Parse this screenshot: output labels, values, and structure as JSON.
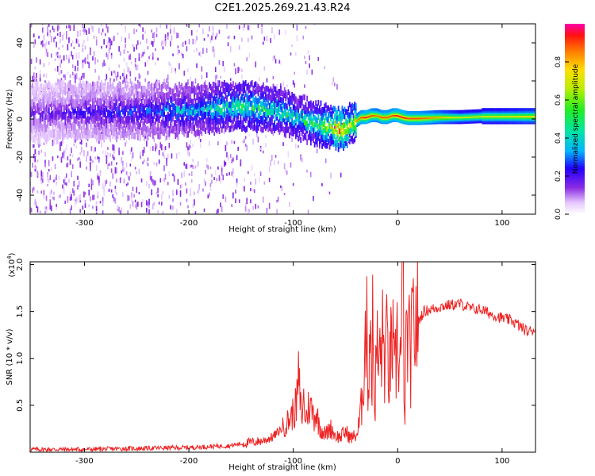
{
  "chart_data": [
    {
      "type": "heatmap",
      "title": "C2E1.2025.269.21.43.R24",
      "xlabel": "Height of straight line (km)",
      "ylabel": "Frequency (Hz)",
      "xlim": [
        -352,
        132
      ],
      "ylim": [
        -50,
        50
      ],
      "xticks": [
        -300,
        -200,
        -100,
        0,
        100
      ],
      "yticks": [
        -40,
        -20,
        0,
        20,
        40
      ],
      "colorbar": {
        "label": "Normalized spectral amplitude",
        "range": [
          0,
          1
        ],
        "ticks": [
          0.0,
          0.2,
          0.4,
          0.6,
          0.8
        ],
        "tick_labels": [
          "0.0",
          "0.2",
          "0.4",
          "0.6",
          "0.8"
        ]
      },
      "ridge": {
        "height_km": [
          -350,
          -300,
          -250,
          -200,
          -170,
          -150,
          -130,
          -110,
          -95,
          -80,
          -65,
          -58,
          -50,
          -45,
          -40,
          -35,
          -30,
          -25,
          -20,
          -15,
          -10,
          -5,
          0,
          5,
          10,
          20,
          40,
          60,
          80,
          100,
          132
        ],
        "frequency_hz": [
          3,
          4,
          4,
          5,
          6,
          7,
          6,
          4,
          1,
          -2,
          -4,
          -5,
          -5,
          -3,
          -1,
          1,
          1,
          2,
          2,
          1,
          1,
          2,
          2,
          1,
          0.5,
          0.5,
          1,
          1,
          1.5,
          1.5,
          1.5
        ],
        "amplitude": [
          0.15,
          0.2,
          0.25,
          0.35,
          0.45,
          0.5,
          0.5,
          0.45,
          0.45,
          0.5,
          0.65,
          0.9,
          0.75,
          0.6,
          0.8,
          0.9,
          0.95,
          0.9,
          0.85,
          0.9,
          0.9,
          0.9,
          0.95,
          0.95,
          0.9,
          0.9,
          0.8,
          0.7,
          0.7,
          0.7,
          0.75
        ]
      }
    },
    {
      "type": "line",
      "xlabel": "Height of straight line (km)",
      "ylabel": "SNR (10 * v/v)",
      "multiplier": "(x10",
      "multiplier_exp": "4",
      "xlim": [
        -352,
        132
      ],
      "ylim": [
        0,
        20300
      ],
      "xticks": [
        -300,
        -200,
        -100,
        0,
        100
      ],
      "yticks": [
        5000,
        10000,
        15000,
        20000
      ],
      "ytick_labels": [
        "0.5",
        "1.0",
        "1.5",
        "2.0"
      ],
      "color": "#ee2222",
      "series": [
        {
          "name": "SNR",
          "x": [
            -352,
            -300,
            -250,
            -200,
            -180,
            -160,
            -150,
            -130,
            -120,
            -110,
            -105,
            -100,
            -97,
            -95,
            -92,
            -90,
            -88,
            -85,
            -82,
            -80,
            -78,
            -75,
            -72,
            -70,
            -68,
            -65,
            -62,
            -60,
            -55,
            -50,
            -45,
            -40,
            -38,
            -35,
            -33,
            -30,
            -28,
            -26,
            -25,
            -24,
            -22,
            -20,
            -18,
            -15,
            -12,
            -10,
            -8,
            -5,
            -3,
            0,
            2,
            4,
            5,
            6,
            7,
            8,
            10,
            12,
            15,
            20,
            25,
            30,
            35,
            40,
            50,
            60,
            65,
            70,
            80,
            90,
            100,
            110,
            115,
            120,
            125,
            128,
            132
          ],
          "y": [
            300,
            300,
            400,
            500,
            600,
            700,
            900,
            1200,
            1600,
            2600,
            3300,
            4200,
            5000,
            7800,
            3800,
            5500,
            3500,
            5000,
            4500,
            3900,
            4200,
            2800,
            2300,
            2000,
            2000,
            2600,
            2300,
            1800,
            1600,
            2200,
            1500,
            1800,
            2200,
            4500,
            8500,
            14000,
            7000,
            17000,
            6000,
            13000,
            5000,
            11000,
            9000,
            12000,
            10000,
            11500,
            8000,
            12500,
            7000,
            13000,
            9000,
            12500,
            20300,
            10000,
            2500,
            12000,
            12500,
            9500,
            13500,
            14000,
            15000,
            15200,
            15300,
            15500,
            15700,
            15800,
            15600,
            15300,
            15200,
            14700,
            14300,
            14000,
            13600,
            13200,
            12800,
            13000,
            13200
          ]
        }
      ]
    }
  ]
}
